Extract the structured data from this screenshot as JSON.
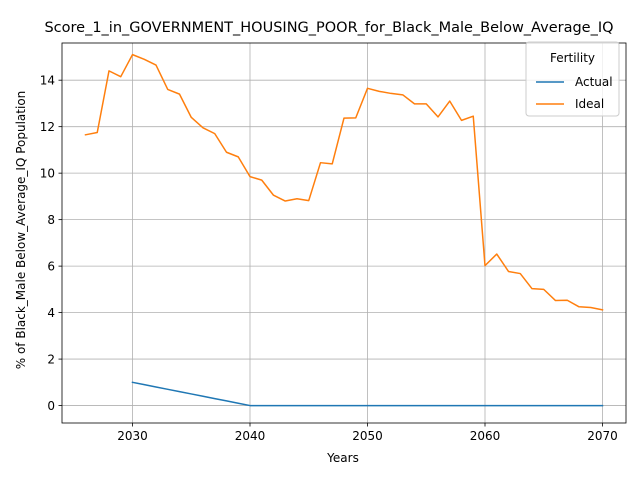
{
  "chart_data": {
    "type": "line",
    "title": "Score_1_in_GOVERNMENT_HOUSING_POOR_for_Black_Male_Below_Average_IQ",
    "xlabel": "Years",
    "ylabel": "% of Black_Male Below_Average_IQ Population",
    "xlim": [
      2024,
      2072
    ],
    "ylim": [
      -0.75,
      15.6
    ],
    "xticks": [
      2030,
      2040,
      2050,
      2060,
      2070
    ],
    "yticks": [
      0,
      2,
      4,
      6,
      8,
      10,
      12,
      14
    ],
    "grid": true,
    "legend": {
      "title": "Fertility",
      "placement": "top-right"
    },
    "series": [
      {
        "name": "Actual",
        "color": "#1f77b4",
        "x": [
          2030,
          2031,
          2032,
          2033,
          2034,
          2035,
          2036,
          2037,
          2038,
          2039,
          2040,
          2045,
          2050,
          2055,
          2060,
          2065,
          2070
        ],
        "values": [
          1.0,
          0.9,
          0.8,
          0.7,
          0.6,
          0.5,
          0.4,
          0.3,
          0.2,
          0.1,
          0.0,
          0.0,
          0.0,
          0.0,
          0.0,
          0.0,
          0.0
        ]
      },
      {
        "name": "Ideal",
        "color": "#ff7f0e",
        "x": [
          2026,
          2027,
          2028,
          2029,
          2030,
          2031,
          2032,
          2033,
          2034,
          2035,
          2036,
          2037,
          2038,
          2039,
          2040,
          2041,
          2042,
          2043,
          2044,
          2045,
          2046,
          2047,
          2048,
          2049,
          2050,
          2051,
          2052,
          2053,
          2054,
          2055,
          2056,
          2057,
          2058,
          2059,
          2060,
          2061,
          2062,
          2063,
          2064,
          2065,
          2066,
          2067,
          2068,
          2069,
          2070
        ],
        "values": [
          11.65,
          11.75,
          14.4,
          14.15,
          15.1,
          14.9,
          14.65,
          13.6,
          13.4,
          12.4,
          11.95,
          11.7,
          10.9,
          10.7,
          9.85,
          9.7,
          9.05,
          8.8,
          8.9,
          8.82,
          10.45,
          10.4,
          12.37,
          12.38,
          13.65,
          13.52,
          13.43,
          13.37,
          12.98,
          12.98,
          12.42,
          13.1,
          12.27,
          12.45,
          6.02,
          6.52,
          5.77,
          5.68,
          5.03,
          5.0,
          4.52,
          4.53,
          4.25,
          4.22,
          4.12
        ]
      }
    ]
  }
}
